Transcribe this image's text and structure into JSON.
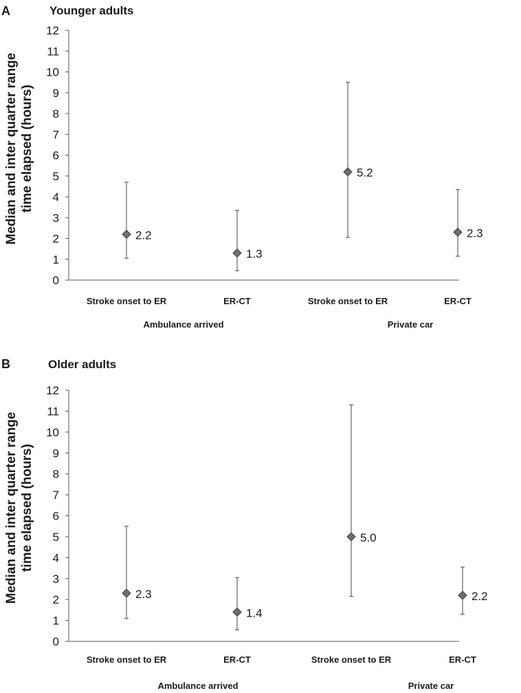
{
  "chart_data": [
    {
      "type": "scatter",
      "panel_letter": "A",
      "title": "Younger adults",
      "ylabel_line1": "Median and inter quarter range",
      "ylabel_line2": "time elapsed (hours)",
      "ylim": [
        0,
        12
      ],
      "yticks": [
        "0",
        "1",
        "2",
        "3",
        "4",
        "5",
        "6",
        "7",
        "8",
        "9",
        "10",
        "11",
        "12"
      ],
      "categories": [
        "Stroke onset to ER",
        "ER-CT",
        "Stroke onset to ER",
        "ER-CT"
      ],
      "groups": [
        "Ambulance arrived",
        "Private car"
      ],
      "series": [
        {
          "name": "Median",
          "values": [
            2.2,
            1.3,
            5.2,
            2.3
          ],
          "labels": [
            "2.2",
            "1.3",
            "5.2",
            "2.3"
          ],
          "q1": [
            1.05,
            0.45,
            2.05,
            1.15
          ],
          "q3": [
            4.7,
            3.35,
            9.5,
            4.35
          ]
        }
      ]
    },
    {
      "type": "scatter",
      "panel_letter": "B",
      "title": "Older adults",
      "ylabel_line1": "Median and inter quarter range",
      "ylabel_line2": "time elapsed (hours)",
      "ylim": [
        0,
        12
      ],
      "yticks": [
        "0",
        "1",
        "2",
        "3",
        "4",
        "5",
        "6",
        "7",
        "8",
        "9",
        "10",
        "11",
        "12"
      ],
      "categories": [
        "Stroke onset to ER",
        "ER-CT",
        "Stroke onset to ER",
        "ER-CT"
      ],
      "groups": [
        "Ambulance arrived",
        "Private car"
      ],
      "series": [
        {
          "name": "Median",
          "values": [
            2.3,
            1.4,
            5.0,
            2.2
          ],
          "labels": [
            "2.3",
            "1.4",
            "5.0",
            "2.2"
          ],
          "q1": [
            1.1,
            0.55,
            2.15,
            1.3
          ],
          "q3": [
            5.5,
            3.05,
            11.3,
            3.55
          ]
        }
      ]
    }
  ]
}
